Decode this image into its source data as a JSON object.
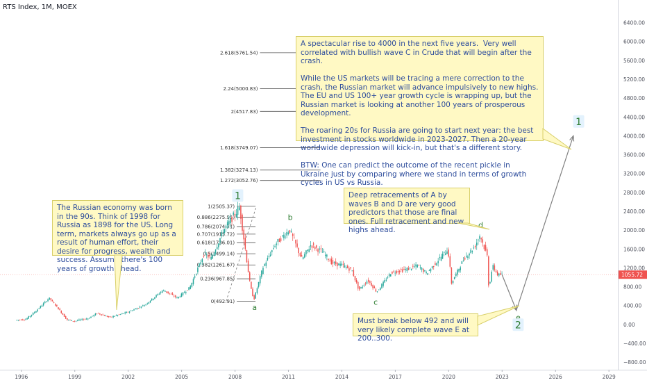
{
  "header": {
    "title": "RTS Index, 1M, MOEX"
  },
  "colors": {
    "up": "#26a69a",
    "down": "#ef5350",
    "wave_label": "#2e7d32",
    "wave_label_bg": "#e3f2fd",
    "note_bg": "#fff9c4",
    "note_text": "#2e4d9c",
    "price_badge": "#ef5350",
    "projection": "#808080"
  },
  "chart_data": {
    "type": "candlestick",
    "title": "RTS Index, 1M, MOEX",
    "x_tick_labels": [
      "1996",
      "1999",
      "2002",
      "2005",
      "2008",
      "2011",
      "2014",
      "2017",
      "2020",
      "2023",
      "2026",
      "2029"
    ],
    "x_range": [
      1994.8,
      2029.5
    ],
    "y_tick_labels": [
      "6400.00",
      "6000.00",
      "5600.00",
      "5200.00",
      "4800.00",
      "4400.00",
      "4000.00",
      "3600.00",
      "3200.00",
      "2800.00",
      "2400.00",
      "2000.00",
      "1600.00",
      "1200.00",
      "800.00",
      "400.00",
      "0.00",
      "−400.00",
      "−800.00"
    ],
    "y_range": [
      -960,
      6880
    ],
    "grid": false,
    "last_price": {
      "label": "1055.72",
      "value": 1055.72
    },
    "price_path": [
      [
        1995.7,
        90
      ],
      [
        1996.3,
        110
      ],
      [
        1996.9,
        300
      ],
      [
        1997.6,
        560
      ],
      [
        1998.0,
        390
      ],
      [
        1998.6,
        100
      ],
      [
        1999.0,
        70
      ],
      [
        1999.8,
        130
      ],
      [
        2000.3,
        240
      ],
      [
        2001.0,
        150
      ],
      [
        2002.0,
        260
      ],
      [
        2003.0,
        420
      ],
      [
        2004.0,
        730
      ],
      [
        2004.8,
        560
      ],
      [
        2005.5,
        780
      ],
      [
        2006.3,
        1500
      ],
      [
        2006.7,
        1400
      ],
      [
        2007.4,
        2000
      ],
      [
        2008.3,
        2487
      ],
      [
        2008.9,
        800
      ],
      [
        2009.1,
        530
      ],
      [
        2009.6,
        1200
      ],
      [
        2010.3,
        1700
      ],
      [
        2011.1,
        2010
      ],
      [
        2011.8,
        1380
      ],
      [
        2012.3,
        1690
      ],
      [
        2013.0,
        1520
      ],
      [
        2013.5,
        1300
      ],
      [
        2014.1,
        1250
      ],
      [
        2014.6,
        1150
      ],
      [
        2015.0,
        730
      ],
      [
        2015.5,
        940
      ],
      [
        2016.0,
        690
      ],
      [
        2016.8,
        1100
      ],
      [
        2017.8,
        1180
      ],
      [
        2018.3,
        1250
      ],
      [
        2018.8,
        1080
      ],
      [
        2019.3,
        1300
      ],
      [
        2020.0,
        1600
      ],
      [
        2020.2,
        880
      ],
      [
        2020.9,
        1400
      ],
      [
        2021.5,
        1650
      ],
      [
        2021.8,
        1900
      ],
      [
        2022.2,
        1450
      ],
      [
        2022.3,
        750
      ],
      [
        2022.5,
        1250
      ],
      [
        2022.8,
        1050
      ],
      [
        2023.0,
        1055.72
      ]
    ],
    "fibonacci_levels": [
      {
        "label": "2.618(5761.54)",
        "value": 5761.54
      },
      {
        "label": "2.24(5000.83)",
        "value": 5000.83
      },
      {
        "label": "2(4517.83)",
        "value": 4517.83
      },
      {
        "label": "1.618(3749.07)",
        "value": 3749.07
      },
      {
        "label": "1.382(3274.13)",
        "value": 3274.13
      },
      {
        "label": "1.272(3052.76)",
        "value": 3052.76
      },
      {
        "label": "1(2505.37)",
        "value": 2505.37
      },
      {
        "label": "0.886(2275.95)",
        "value": 2275.95
      },
      {
        "label": "0.786(2074.71)",
        "value": 2074.71
      },
      {
        "label": "0.707(1915.72)",
        "value": 1915.72
      },
      {
        "label": "0.618(1736.01)",
        "value": 1736.01
      },
      {
        "label": "0.5(1499.14)",
        "value": 1499.14
      },
      {
        "label": "0.382(1261.67)",
        "value": 1261.67
      },
      {
        "label": "0.236(967.85)",
        "value": 967.85
      },
      {
        "label": "0(492.91)",
        "value": 492.91
      }
    ],
    "wave_labels": [
      {
        "text": "1",
        "x": 2008.15,
        "y": 2690,
        "boxed": true
      },
      {
        "text": "a",
        "x": 2009.1,
        "y": 355,
        "boxed": false
      },
      {
        "text": "b",
        "x": 2011.1,
        "y": 2260,
        "boxed": false
      },
      {
        "text": "c",
        "x": 2015.9,
        "y": 460,
        "boxed": false
      },
      {
        "text": "d",
        "x": 2021.8,
        "y": 2100,
        "boxed": false
      },
      {
        "text": "e",
        "x": 2023.9,
        "y": 140,
        "boxed": false
      },
      {
        "text": "2",
        "x": 2023.9,
        "y": -50,
        "boxed": true
      },
      {
        "text": "1",
        "x": 2027.3,
        "y": 4260,
        "boxed": true
      }
    ],
    "projection_path": [
      [
        2023.0,
        1050
      ],
      [
        2023.8,
        300
      ],
      [
        2027.0,
        4000
      ]
    ],
    "notes": [
      {
        "text": "The Russian economy was born in the 90s. Think of 1998 for Russia as 1898 for the US. Long term, markets always go up as a result of human effort, their desire for progress, wealth and success. Assume there's 100 years of growth ahead."
      },
      {
        "text": "A spectacular rise to 4000 in the next five years.  Very well correlated with bullish wave C in Crude that will begin after the crash.\n\nWhile the US markets will be tracing a mere correction to the crash, the Russian market will advance impulsively to new highs. The EU and US 100+ year growth cycle is wrapping up, but the Russian market is looking at another 100 years of prosperous development.\n\nThe roaring 20s for Russia are going to start next year: the best investment in stocks worldwide in 2023-2027. Then a 20-year worldwide depression will kick-in, but that's a different story.\n\nBTW: One can predict the outcome of the recent pickle in Ukraine just by comparing where we stand in terms of growth cycles in US vs Russia."
      },
      {
        "text": "Deep retracements of A by waves B and D are very good predictors that those are final ones. Full retracement and new highs ahead."
      },
      {
        "text": "Must break below 492 and will very likely complete wave E at 200..300."
      }
    ]
  }
}
